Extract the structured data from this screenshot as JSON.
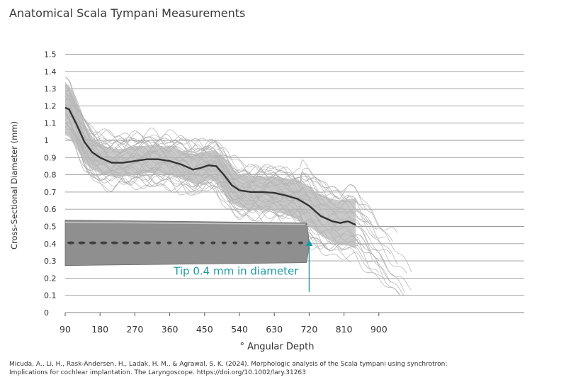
{
  "title": "Anatomical Scala Tympani Measurements",
  "citation": {
    "line1": "Micuda, A., Li, H., Rask-Andersen, H., Ladak, H. M., & Agrawal, S. K. (2024). Morphologic analysis of the Scala tympani using synchrotron:",
    "line2": "Implications for cochlear implantation. The Laryngoscope. https://doi.org/10.1002/lary.31263"
  },
  "colors": {
    "grid": "#9a9a9a",
    "band": "#b8b8b8",
    "individual": "#a9a9a9",
    "mean": "#333333",
    "annotation": "#1b9aa6"
  },
  "chart_data": {
    "type": "line",
    "title": "Anatomical Scala Tympani Measurements",
    "xlabel": "° Angular Depth",
    "ylabel": "Cross-Sectional Diameter (mm)",
    "xlim": [
      90,
      1000
    ],
    "ylim": [
      0,
      1.5
    ],
    "x_ticks": [
      "90",
      "180",
      "270",
      "360",
      "450",
      "540",
      "630",
      "720",
      "810",
      "900"
    ],
    "y_ticks": [
      "0",
      "0.1",
      "0.2",
      "0.3",
      "0.4",
      "0.5",
      "0.6",
      "0.7",
      "0.8",
      "0.9",
      "1",
      "1.1",
      "1.2",
      "1.3",
      "1.4",
      "1.5"
    ],
    "grid": true,
    "mean_series": {
      "x": [
        90,
        100,
        120,
        140,
        160,
        180,
        210,
        240,
        270,
        300,
        330,
        360,
        390,
        420,
        440,
        460,
        480,
        500,
        520,
        540,
        570,
        600,
        630,
        660,
        690,
        720,
        750,
        780,
        800,
        820,
        840
      ],
      "y": [
        1.19,
        1.18,
        1.09,
        0.99,
        0.93,
        0.9,
        0.87,
        0.87,
        0.88,
        0.89,
        0.89,
        0.88,
        0.86,
        0.83,
        0.84,
        0.855,
        0.85,
        0.8,
        0.74,
        0.71,
        0.7,
        0.7,
        0.695,
        0.68,
        0.66,
        0.62,
        0.56,
        0.53,
        0.52,
        0.53,
        0.51
      ]
    },
    "band_upper": [
      1.33,
      1.32,
      1.22,
      1.1,
      1.02,
      0.98,
      0.95,
      0.95,
      0.96,
      0.97,
      0.97,
      0.96,
      0.94,
      0.92,
      0.93,
      0.94,
      0.94,
      0.9,
      0.84,
      0.8,
      0.79,
      0.79,
      0.79,
      0.78,
      0.77,
      0.73,
      0.68,
      0.66,
      0.65,
      0.66,
      0.66
    ],
    "band_lower": [
      1.03,
      1.02,
      0.95,
      0.87,
      0.83,
      0.81,
      0.79,
      0.79,
      0.8,
      0.81,
      0.81,
      0.8,
      0.78,
      0.75,
      0.75,
      0.77,
      0.76,
      0.7,
      0.64,
      0.61,
      0.6,
      0.6,
      0.59,
      0.57,
      0.54,
      0.5,
      0.45,
      0.41,
      0.39,
      0.39,
      0.37
    ],
    "implant": {
      "x_start": 90,
      "x_end": 720,
      "diameter_start": 0.44,
      "diameter_end": 0.42
    },
    "annotations": [
      {
        "text": "Tip 0.4 mm in diameter",
        "x": 720,
        "y": 0.24,
        "arrow_from": 0.12,
        "arrow_to": 0.42
      }
    ]
  }
}
